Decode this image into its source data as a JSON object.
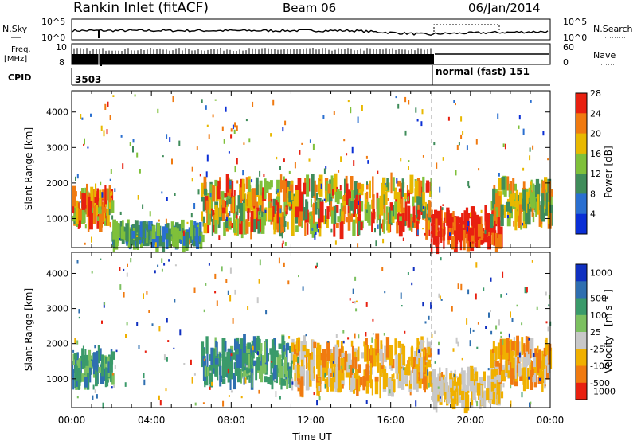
{
  "header": {
    "title": "Rankin Inlet (fitACF)",
    "beam": "Beam 06",
    "date": "06/Jan/2014"
  },
  "status": {
    "nsky_label": "N.Sky",
    "nsky_ticks": [
      "10^5",
      "10^0"
    ],
    "nsearch_label": "N.Search",
    "nsearch_ticks": [
      "10^5",
      "10^0"
    ],
    "freq_label": "Freq.",
    "freq_unit": "[MHz]",
    "freq_ticks": [
      "10",
      "8"
    ],
    "nave_label": "Nave",
    "nave_ticks": [
      "60",
      "0"
    ],
    "cpid_label": "CPID",
    "cpid_before": "3503",
    "cpid_after": "normal (fast) 151"
  },
  "chart_data": [
    {
      "type": "heatmap",
      "name": "power",
      "ylabel": "Slant Range [km]",
      "xlabel": "Time UT",
      "x_ticks": [
        "00:00",
        "04:00",
        "08:00",
        "12:00",
        "16:00",
        "20:00",
        "00:00"
      ],
      "xlim_hours": [
        0,
        24
      ],
      "ylim_km": [
        180,
        4600
      ],
      "y_ticks": [
        1000,
        2000,
        3000,
        4000
      ],
      "colorbar": {
        "label": "Power [dB]",
        "ticks": [
          "4",
          "8",
          "12",
          "16",
          "20",
          "24",
          "28"
        ],
        "colors": [
          "#0a2fd6",
          "#2a6fd0",
          "#3f8c5a",
          "#7fc03a",
          "#e8b800",
          "#f07a10",
          "#e82010"
        ]
      },
      "regions": [
        {
          "t0": 0.0,
          "t1": 2.0,
          "r0": 900,
          "r1": 1700,
          "level": "16-28 dB"
        },
        {
          "t0": 2.0,
          "t1": 6.5,
          "r0": 350,
          "r1": 700,
          "level": "8-16 dB"
        },
        {
          "t0": 6.5,
          "t1": 18.0,
          "r0": 700,
          "r1": 2000,
          "level": "12-28 dB"
        },
        {
          "t0": 18.0,
          "t1": 21.5,
          "r0": 300,
          "r1": 1100,
          "level": "24-28 dB"
        },
        {
          "t0": 21.0,
          "t1": 24.0,
          "r0": 900,
          "r1": 2000,
          "level": "12-24 dB"
        }
      ]
    },
    {
      "type": "heatmap",
      "name": "velocity",
      "ylabel": "Slant Range [km]",
      "xlabel": "Time UT",
      "x_ticks": [
        "00:00",
        "04:00",
        "08:00",
        "12:00",
        "16:00",
        "20:00",
        "00:00"
      ],
      "xlim_hours": [
        0,
        24
      ],
      "ylim_km": [
        180,
        4600
      ],
      "y_ticks": [
        1000,
        2000,
        3000,
        4000
      ],
      "colorbar": {
        "label": "Velocity [m s-1]",
        "ticks": [
          "1000",
          "500",
          "100",
          "25",
          "-25",
          "-100",
          "-500",
          "-1000"
        ],
        "colors": [
          "#1030c0",
          "#2f6fb0",
          "#3a9a6a",
          "#7cc060",
          "#c8c8c8",
          "#f0b000",
          "#f07a10",
          "#e82010"
        ]
      },
      "regions": [
        {
          "t0": 0.0,
          "t1": 2.0,
          "r0": 900,
          "r1": 1700,
          "level": "25 to 100 m/s"
        },
        {
          "t0": 6.5,
          "t1": 11.0,
          "r0": 900,
          "r1": 2000,
          "level": "25 to 500 m/s"
        },
        {
          "t0": 11.0,
          "t1": 18.0,
          "r0": 700,
          "r1": 2000,
          "level": "-25 to -500 m/s"
        },
        {
          "t0": 18.0,
          "t1": 21.5,
          "r0": 300,
          "r1": 1100,
          "level": "-25 to -100 m/s"
        },
        {
          "t0": 21.0,
          "t1": 24.0,
          "r0": 900,
          "r1": 2000,
          "level": "-100 to -500 m/s"
        }
      ]
    }
  ],
  "panel_labels": {
    "power_bar_label": "Power [dB]",
    "velocity_bar_label_1": "Velocity",
    "velocity_bar_label_2": "[m s",
    "velocity_bar_label_sup": "-1",
    "velocity_bar_label_3": "]"
  }
}
